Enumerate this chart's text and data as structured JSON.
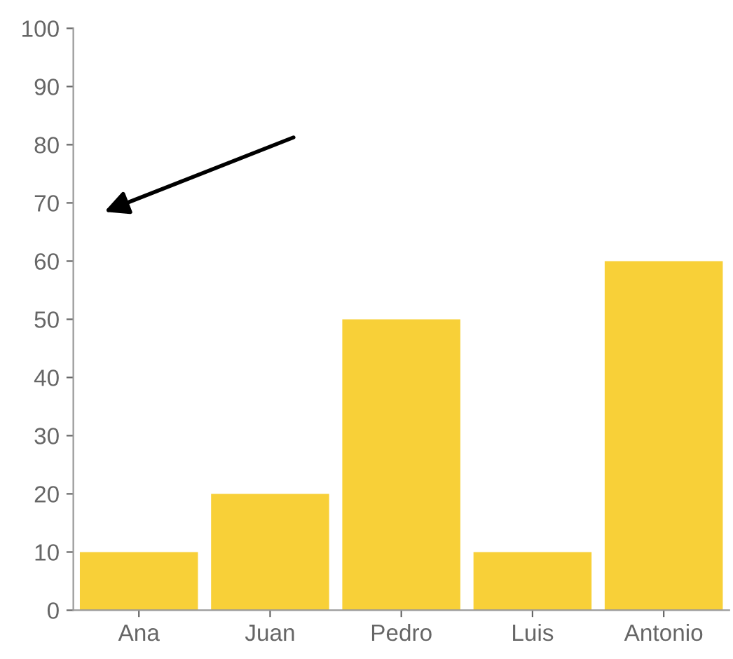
{
  "chart_data": {
    "type": "bar",
    "categories": [
      "Ana",
      "Juan",
      "Pedro",
      "Luis",
      "Antonio"
    ],
    "values": [
      10,
      20,
      50,
      10,
      60
    ],
    "color": "#f8d038",
    "ylim": [
      0,
      100
    ],
    "yticks": [
      0,
      10,
      20,
      30,
      40,
      50,
      60,
      70,
      80,
      90,
      100
    ],
    "grid": false,
    "legend": false
  }
}
